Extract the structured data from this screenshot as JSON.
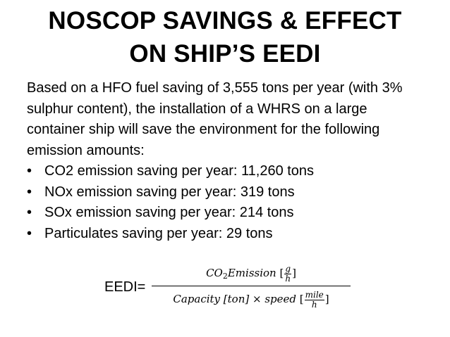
{
  "title": {
    "line1": "NOSCOP SAVINGS & EFFECT",
    "line2": "ON SHIP’S EEDI"
  },
  "intro": "Based on a HFO fuel saving of 3,555 tons per year (with 3% sulphur content), the installation of a WHRS on a large container ship will save the environment for the following emission amounts:",
  "bullets": [
    "CO2 emission saving per year: 11,260 tons",
    "NOx emission saving per year: 319 tons",
    "SOx emission saving per year: 214 tons",
    "Particulates saving per year: 29 tons"
  ],
  "bullet_glyph": "•",
  "formula": {
    "lhs": "EEDI=",
    "numerator": {
      "co": "CO",
      "sub": "2",
      "word": "Emission",
      "unit_num": "g",
      "unit_den": "h"
    },
    "denominator": {
      "text": "Capacity [ton] × speed",
      "unit_num": "mile",
      "unit_den": "h"
    }
  }
}
